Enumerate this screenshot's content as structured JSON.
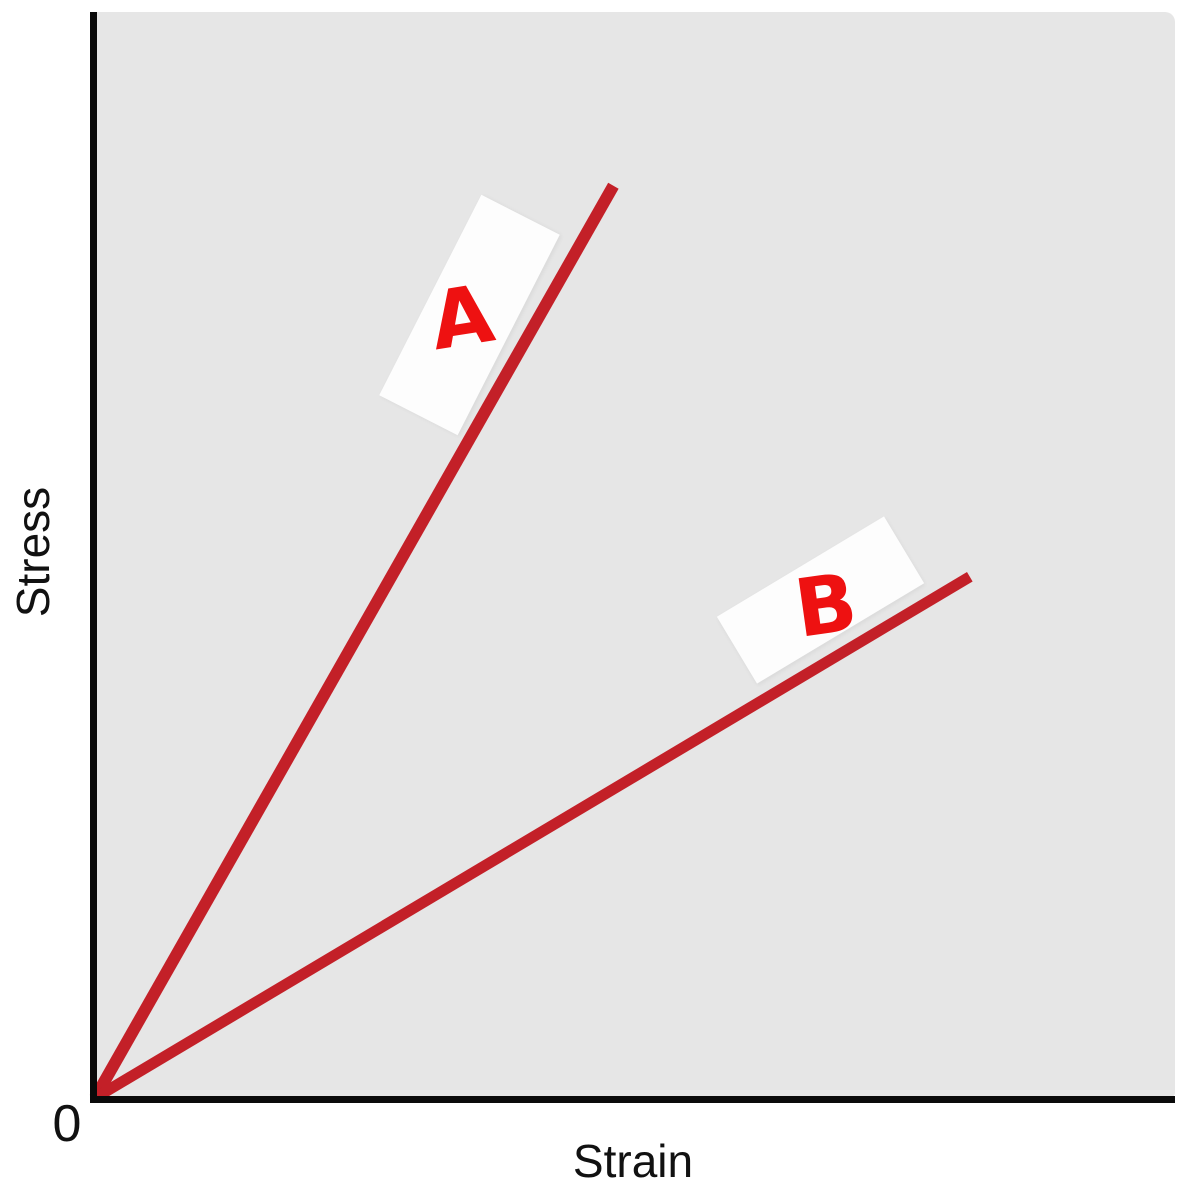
{
  "chart_data": {
    "type": "line",
    "title": "",
    "xlabel": "Strain",
    "ylabel": "Stress",
    "origin_label": "0",
    "x_tick_labels": [],
    "y_tick_labels": [],
    "grid": false,
    "legend_position": "inline-labels-on-lines",
    "plot_background": "#e6e6e6",
    "axis_color": "#0a0a0a",
    "axis_ranges": {
      "x": [
        0,
        1
      ],
      "y": [
        0,
        1
      ]
    },
    "series": [
      {
        "name": "A",
        "x": [
          0,
          0.48
        ],
        "y": [
          0,
          0.84
        ],
        "color": "#c32028",
        "stroke_width": 12,
        "label_color": "#ee1111",
        "label_background": "#fdfdfd"
      },
      {
        "name": "B",
        "x": [
          0,
          0.81
        ],
        "y": [
          0,
          0.48
        ],
        "color": "#c32028",
        "stroke_width": 11,
        "label_color": "#ee1111",
        "label_background": "#fdfdfd"
      }
    ]
  }
}
